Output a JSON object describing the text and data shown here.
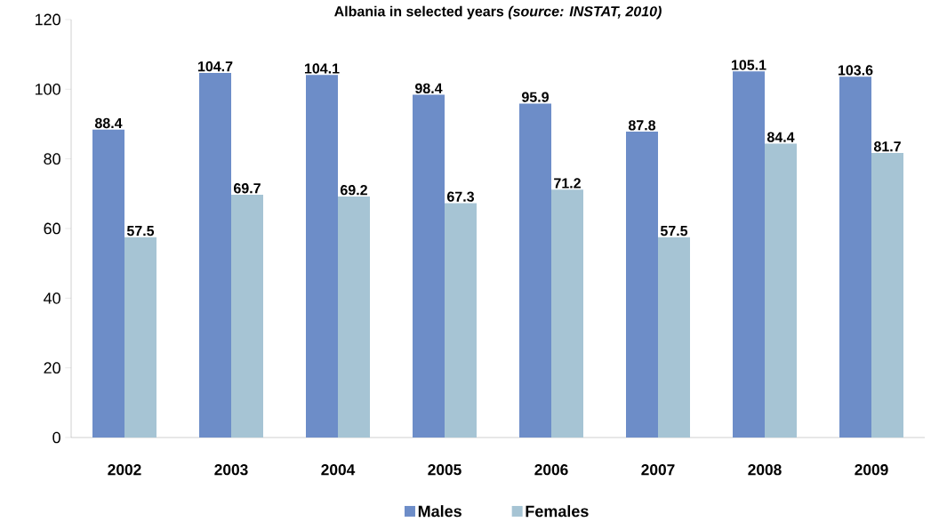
{
  "chart_data": {
    "type": "bar",
    "title": "Albania in selected years *(source: INSTAT, 2010)*",
    "categories": [
      "2002",
      "2003",
      "2004",
      "2005",
      "2006",
      "2007",
      "2008",
      "2009"
    ],
    "series": [
      {
        "name": "Males",
        "color": "#6d8dc8",
        "values": [
          88.4,
          104.7,
          104.1,
          98.4,
          95.9,
          87.8,
          105.1,
          103.6
        ]
      },
      {
        "name": "Females",
        "color": "#a6c4d4",
        "values": [
          57.5,
          69.7,
          69.2,
          67.3,
          71.2,
          57.5,
          84.4,
          81.7
        ]
      }
    ],
    "ylim": [
      0,
      120
    ],
    "yticks": [
      0,
      20,
      40,
      60,
      80,
      100,
      120
    ],
    "data_labels": true,
    "legend": "bottom",
    "grid": false
  }
}
